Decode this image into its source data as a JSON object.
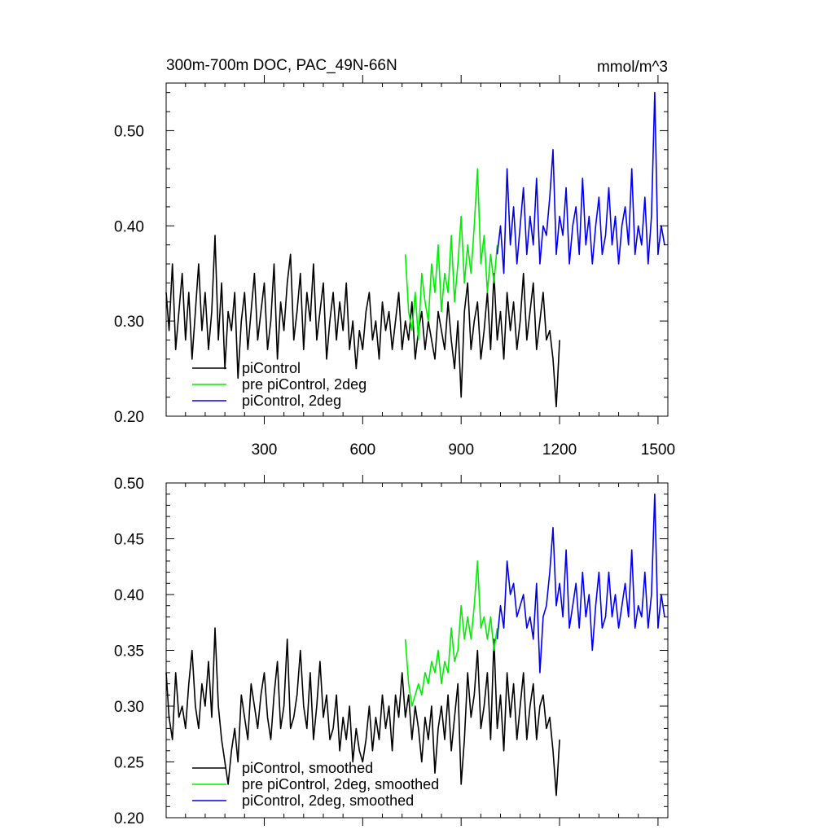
{
  "chart_data": [
    {
      "type": "line",
      "title": "300m-700m DOC, PAC_49N-66N",
      "units": "mmol/m^3",
      "xlim": [
        1,
        1530
      ],
      "ylim": [
        0.2,
        0.55
      ],
      "xticks": [
        300,
        600,
        900,
        1200,
        1500
      ],
      "xtick_labels": [
        "300",
        "600",
        "900",
        "1200",
        "1500"
      ],
      "yticks": [
        0.2,
        0.3,
        0.4,
        0.5
      ],
      "ytick_labels": [
        "0.20",
        "0.30",
        "0.40",
        "0.50"
      ],
      "legend_position": "bottom-left",
      "series": [
        {
          "name": "piControl",
          "color": "#000000",
          "x": [
            1,
            10,
            20,
            30,
            40,
            50,
            60,
            70,
            80,
            90,
            100,
            110,
            120,
            130,
            140,
            150,
            160,
            170,
            180,
            190,
            200,
            210,
            220,
            230,
            240,
            250,
            260,
            270,
            280,
            290,
            300,
            310,
            320,
            330,
            340,
            350,
            360,
            370,
            380,
            390,
            400,
            410,
            420,
            430,
            440,
            450,
            460,
            470,
            480,
            490,
            500,
            510,
            520,
            530,
            540,
            550,
            560,
            570,
            580,
            590,
            600,
            610,
            620,
            630,
            640,
            650,
            660,
            670,
            680,
            690,
            700,
            710,
            720,
            730,
            740,
            750,
            760,
            770,
            780,
            790,
            800,
            810,
            820,
            830,
            840,
            850,
            860,
            870,
            880,
            890,
            900,
            910,
            920,
            930,
            940,
            950,
            960,
            970,
            980,
            990,
            1000,
            1010,
            1020,
            1030,
            1040,
            1050,
            1060,
            1070,
            1080,
            1090,
            1100,
            1110,
            1120,
            1130,
            1140,
            1150,
            1160,
            1170,
            1180,
            1190,
            1200
          ],
          "y": [
            0.33,
            0.29,
            0.36,
            0.27,
            0.31,
            0.35,
            0.28,
            0.33,
            0.26,
            0.31,
            0.36,
            0.29,
            0.33,
            0.27,
            0.31,
            0.39,
            0.28,
            0.34,
            0.25,
            0.31,
            0.29,
            0.33,
            0.24,
            0.3,
            0.33,
            0.27,
            0.31,
            0.35,
            0.28,
            0.31,
            0.34,
            0.27,
            0.3,
            0.36,
            0.26,
            0.32,
            0.29,
            0.34,
            0.37,
            0.28,
            0.31,
            0.35,
            0.27,
            0.33,
            0.3,
            0.36,
            0.28,
            0.31,
            0.34,
            0.26,
            0.3,
            0.33,
            0.28,
            0.32,
            0.29,
            0.34,
            0.27,
            0.3,
            0.25,
            0.29,
            0.27,
            0.31,
            0.33,
            0.28,
            0.3,
            0.26,
            0.32,
            0.29,
            0.31,
            0.27,
            0.3,
            0.33,
            0.27,
            0.3,
            0.28,
            0.32,
            0.26,
            0.29,
            0.31,
            0.27,
            0.3,
            0.28,
            0.26,
            0.31,
            0.29,
            0.27,
            0.32,
            0.28,
            0.25,
            0.3,
            0.22,
            0.31,
            0.34,
            0.27,
            0.3,
            0.32,
            0.26,
            0.29,
            0.33,
            0.27,
            0.35,
            0.28,
            0.31,
            0.26,
            0.33,
            0.29,
            0.32,
            0.27,
            0.3,
            0.35,
            0.28,
            0.31,
            0.34,
            0.27,
            0.3,
            0.33,
            0.28,
            0.29,
            0.26,
            0.21,
            0.28
          ]
        },
        {
          "name": "pre piControl, 2deg",
          "color": "#00ee00",
          "x": [
            730,
            740,
            750,
            760,
            770,
            780,
            790,
            800,
            810,
            820,
            830,
            840,
            850,
            860,
            870,
            880,
            890,
            900,
            910,
            920,
            930,
            940,
            950,
            960,
            970,
            980,
            990,
            1000,
            1010
          ],
          "y": [
            0.37,
            0.31,
            0.29,
            0.33,
            0.28,
            0.35,
            0.32,
            0.3,
            0.36,
            0.33,
            0.38,
            0.31,
            0.35,
            0.33,
            0.39,
            0.32,
            0.36,
            0.41,
            0.34,
            0.38,
            0.35,
            0.4,
            0.46,
            0.36,
            0.39,
            0.33,
            0.37,
            0.34,
            0.38
          ]
        },
        {
          "name": "piControl, 2deg",
          "color": "#0000ee",
          "x": [
            1010,
            1020,
            1030,
            1040,
            1050,
            1060,
            1070,
            1080,
            1090,
            1100,
            1110,
            1120,
            1130,
            1140,
            1150,
            1160,
            1170,
            1180,
            1190,
            1200,
            1210,
            1220,
            1230,
            1240,
            1250,
            1260,
            1270,
            1280,
            1290,
            1300,
            1310,
            1320,
            1330,
            1340,
            1350,
            1360,
            1370,
            1380,
            1390,
            1400,
            1410,
            1420,
            1430,
            1440,
            1450,
            1460,
            1470,
            1480,
            1490,
            1500,
            1510,
            1520
          ],
          "y": [
            0.37,
            0.4,
            0.35,
            0.46,
            0.38,
            0.42,
            0.36,
            0.4,
            0.44,
            0.37,
            0.41,
            0.38,
            0.45,
            0.36,
            0.4,
            0.39,
            0.43,
            0.48,
            0.37,
            0.41,
            0.39,
            0.44,
            0.36,
            0.4,
            0.42,
            0.37,
            0.45,
            0.38,
            0.41,
            0.36,
            0.4,
            0.43,
            0.37,
            0.39,
            0.44,
            0.38,
            0.41,
            0.36,
            0.4,
            0.42,
            0.38,
            0.46,
            0.37,
            0.4,
            0.38,
            0.43,
            0.36,
            0.41,
            0.54,
            0.37,
            0.4,
            0.38
          ]
        }
      ]
    },
    {
      "type": "line",
      "xlim": [
        1,
        1530
      ],
      "ylim": [
        0.2,
        0.5
      ],
      "xticks": [
        300,
        600,
        900,
        1200,
        1500
      ],
      "yticks": [
        0.2,
        0.25,
        0.3,
        0.35,
        0.4,
        0.45,
        0.5
      ],
      "ytick_labels": [
        "0.20",
        "0.25",
        "0.30",
        "0.35",
        "0.40",
        "0.45",
        "0.50"
      ],
      "legend_position": "bottom-left",
      "series": [
        {
          "name": "piControl, smoothed",
          "color": "#000000",
          "x": [
            1,
            10,
            20,
            30,
            40,
            50,
            60,
            70,
            80,
            90,
            100,
            110,
            120,
            130,
            140,
            150,
            160,
            170,
            180,
            190,
            200,
            210,
            220,
            230,
            240,
            250,
            260,
            270,
            280,
            290,
            300,
            310,
            320,
            330,
            340,
            350,
            360,
            370,
            380,
            390,
            400,
            410,
            420,
            430,
            440,
            450,
            460,
            470,
            480,
            490,
            500,
            510,
            520,
            530,
            540,
            550,
            560,
            570,
            580,
            590,
            600,
            610,
            620,
            630,
            640,
            650,
            660,
            670,
            680,
            690,
            700,
            710,
            720,
            730,
            740,
            750,
            760,
            770,
            780,
            790,
            800,
            810,
            820,
            830,
            840,
            850,
            860,
            870,
            880,
            890,
            900,
            910,
            920,
            930,
            940,
            950,
            960,
            970,
            980,
            990,
            1000,
            1010,
            1020,
            1030,
            1040,
            1050,
            1060,
            1070,
            1080,
            1090,
            1100,
            1110,
            1120,
            1130,
            1140,
            1150,
            1160,
            1170,
            1180,
            1190,
            1200
          ],
          "y": [
            0.33,
            0.29,
            0.27,
            0.33,
            0.29,
            0.3,
            0.28,
            0.32,
            0.35,
            0.3,
            0.28,
            0.32,
            0.3,
            0.34,
            0.29,
            0.37,
            0.3,
            0.27,
            0.25,
            0.23,
            0.26,
            0.28,
            0.25,
            0.31,
            0.29,
            0.27,
            0.32,
            0.3,
            0.28,
            0.31,
            0.33,
            0.29,
            0.27,
            0.31,
            0.34,
            0.28,
            0.3,
            0.36,
            0.28,
            0.29,
            0.31,
            0.35,
            0.3,
            0.28,
            0.33,
            0.27,
            0.3,
            0.34,
            0.29,
            0.31,
            0.27,
            0.28,
            0.31,
            0.26,
            0.29,
            0.27,
            0.3,
            0.25,
            0.28,
            0.26,
            0.25,
            0.27,
            0.3,
            0.26,
            0.29,
            0.27,
            0.31,
            0.28,
            0.3,
            0.26,
            0.31,
            0.29,
            0.33,
            0.29,
            0.31,
            0.27,
            0.3,
            0.28,
            0.25,
            0.29,
            0.27,
            0.3,
            0.24,
            0.28,
            0.3,
            0.27,
            0.31,
            0.26,
            0.29,
            0.32,
            0.23,
            0.27,
            0.33,
            0.29,
            0.31,
            0.35,
            0.28,
            0.3,
            0.33,
            0.27,
            0.36,
            0.28,
            0.31,
            0.26,
            0.33,
            0.29,
            0.32,
            0.27,
            0.3,
            0.33,
            0.27,
            0.3,
            0.32,
            0.27,
            0.3,
            0.31,
            0.28,
            0.29,
            0.26,
            0.22,
            0.27
          ]
        },
        {
          "name": "pre piControl, 2deg, smoothed",
          "color": "#00ee00",
          "x": [
            730,
            740,
            750,
            760,
            770,
            780,
            790,
            800,
            810,
            820,
            830,
            840,
            850,
            860,
            870,
            880,
            890,
            900,
            910,
            920,
            930,
            940,
            950,
            960,
            970,
            980,
            990,
            1000,
            1010
          ],
          "y": [
            0.36,
            0.32,
            0.3,
            0.31,
            0.32,
            0.31,
            0.33,
            0.32,
            0.34,
            0.33,
            0.35,
            0.32,
            0.34,
            0.33,
            0.37,
            0.34,
            0.35,
            0.39,
            0.36,
            0.38,
            0.36,
            0.39,
            0.43,
            0.37,
            0.38,
            0.36,
            0.38,
            0.35,
            0.37
          ]
        },
        {
          "name": "piControl, 2deg, smoothed",
          "color": "#0000ee",
          "x": [
            1010,
            1020,
            1030,
            1040,
            1050,
            1060,
            1070,
            1080,
            1090,
            1100,
            1110,
            1120,
            1130,
            1140,
            1150,
            1160,
            1170,
            1180,
            1190,
            1200,
            1210,
            1220,
            1230,
            1240,
            1250,
            1260,
            1270,
            1280,
            1290,
            1300,
            1310,
            1320,
            1330,
            1340,
            1350,
            1360,
            1370,
            1380,
            1390,
            1400,
            1410,
            1420,
            1430,
            1440,
            1450,
            1460,
            1470,
            1480,
            1490,
            1500,
            1510,
            1520
          ],
          "y": [
            0.36,
            0.39,
            0.37,
            0.43,
            0.4,
            0.41,
            0.38,
            0.39,
            0.4,
            0.37,
            0.38,
            0.36,
            0.41,
            0.33,
            0.38,
            0.39,
            0.42,
            0.46,
            0.39,
            0.41,
            0.38,
            0.44,
            0.37,
            0.39,
            0.41,
            0.37,
            0.42,
            0.38,
            0.4,
            0.35,
            0.39,
            0.42,
            0.37,
            0.38,
            0.42,
            0.38,
            0.4,
            0.37,
            0.39,
            0.41,
            0.38,
            0.44,
            0.37,
            0.39,
            0.38,
            0.42,
            0.37,
            0.4,
            0.49,
            0.37,
            0.4,
            0.38
          ]
        }
      ]
    }
  ]
}
